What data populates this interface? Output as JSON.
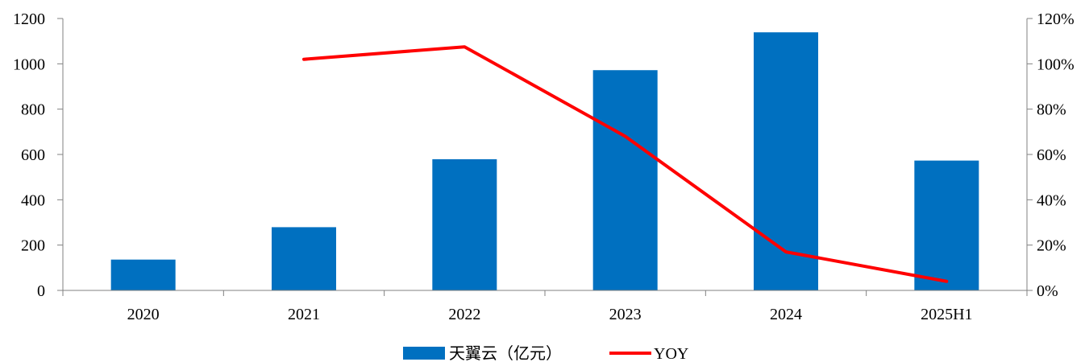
{
  "chart_data": {
    "type": "bar",
    "categories": [
      "2020",
      "2021",
      "2022",
      "2023",
      "2024",
      "2025H1"
    ],
    "series": [
      {
        "name": "天翼云（亿元）",
        "type": "bar",
        "axis": "left",
        "values": [
          136,
          279,
          579,
          972,
          1139,
          573
        ],
        "color": "#0070C0"
      },
      {
        "name": "YOY",
        "type": "line",
        "axis": "right",
        "values": [
          null,
          1.02,
          1.075,
          0.68,
          0.17,
          0.04
        ],
        "color": "#FF0000"
      }
    ],
    "y_left": {
      "min": 0,
      "max": 1200,
      "ticks": [
        0,
        200,
        400,
        600,
        800,
        1000,
        1200
      ],
      "tick_labels": [
        "0",
        "200",
        "400",
        "600",
        "800",
        "1000",
        "1200"
      ]
    },
    "y_right": {
      "min": 0,
      "max": 1.2,
      "ticks": [
        0,
        0.2,
        0.4,
        0.6,
        0.8,
        1.0,
        1.2
      ],
      "tick_labels": [
        "0%",
        "20%",
        "40%",
        "60%",
        "80%",
        "100%",
        "120%"
      ]
    },
    "title": "",
    "xlabel": "",
    "ylabel": "",
    "grid": false,
    "legend_position": "bottom-center"
  }
}
